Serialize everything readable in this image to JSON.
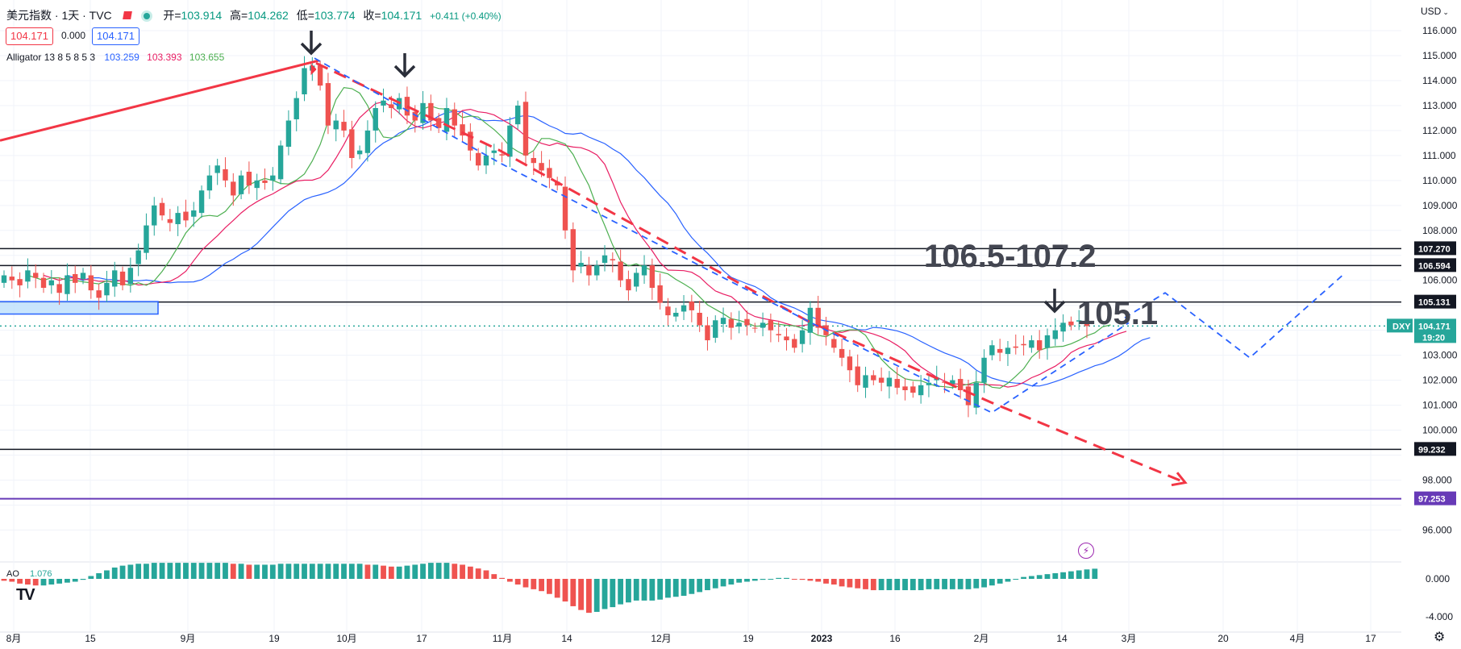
{
  "header": {
    "symbol": "美元指数 · 1天 · TVC",
    "open_label": "开=",
    "open": "103.914",
    "high_label": "高=",
    "high": "104.262",
    "low_label": "低=",
    "low": "103.774",
    "close_label": "收=",
    "close": "104.171",
    "change": "+0.411 (+0.40%)",
    "bid": "104.171",
    "spread": "0.000",
    "ask": "104.171",
    "indicator_name": "Alligator 13 8 5 8 5 3",
    "jaw": "103.259",
    "teeth": "103.393",
    "lips": "103.655",
    "currency": "USD"
  },
  "colors": {
    "up": "#26a69a",
    "down": "#ef5350",
    "jaw": "#2962ff",
    "teeth": "#e91e63",
    "lips": "#4caf50",
    "trend_red": "#f23645",
    "trend_blue": "#2962ff",
    "purple": "#673ab7",
    "annotation": "#434651"
  },
  "chart_data": {
    "type": "candlestick",
    "y_axis_ticks": [
      "116.000",
      "115.000",
      "114.000",
      "113.000",
      "112.000",
      "111.000",
      "110.000",
      "109.000",
      "108.000",
      "106.000",
      "103.000",
      "102.000",
      "101.000",
      "100.000",
      "98.000",
      "96.000"
    ],
    "ylim": [
      95.5,
      116.8
    ],
    "x_axis_labels": [
      "8月",
      "15",
      "9月",
      "19",
      "10月",
      "17",
      "11月",
      "14",
      "12月",
      "19",
      "2023",
      "16",
      "2月",
      "14",
      "3月",
      "20",
      "4月",
      "17"
    ],
    "horizontal_levels": [
      {
        "value": 107.27,
        "label": "107.270",
        "color": "#131722"
      },
      {
        "value": 106.594,
        "label": "106.594",
        "color": "#131722"
      },
      {
        "value": 105.131,
        "label": "105.131",
        "color": "#131722"
      },
      {
        "value": 99.232,
        "label": "99.232",
        "color": "#131722"
      },
      {
        "value": 97.253,
        "label": "97.253",
        "color": "#673ab7"
      }
    ],
    "current_price": {
      "symbol": "DXY",
      "value": 104.171,
      "label": "104.171",
      "countdown": "19:20"
    },
    "annotations": [
      "106.5-107.2",
      "105.1"
    ],
    "closes": [
      106.2,
      106.0,
      105.8,
      106.4,
      106.1,
      105.7,
      106.0,
      105.5,
      106.2,
      105.9,
      106.3,
      105.6,
      105.3,
      105.9,
      106.4,
      105.8,
      106.5,
      107.2,
      108.2,
      109.0,
      108.6,
      108.3,
      108.7,
      108.4,
      108.8,
      109.6,
      110.2,
      110.6,
      110.0,
      109.4,
      110.2,
      109.8,
      110.0,
      109.9,
      110.2,
      111.4,
      112.4,
      113.3,
      114.5,
      114.6,
      113.8,
      112.2,
      112.4,
      112.0,
      110.9,
      111.2,
      112.0,
      112.9,
      113.2,
      112.9,
      113.3,
      112.6,
      112.4,
      113.1,
      112.4,
      112.1,
      112.9,
      112.2,
      111.8,
      111.2,
      110.6,
      111.0,
      111.2,
      111.0,
      112.2,
      113.0,
      111.0,
      110.7,
      110.4,
      110.1,
      109.8,
      108.0,
      106.4,
      106.7,
      106.2,
      106.6,
      107.0,
      106.8,
      106.0,
      105.6,
      106.3,
      106.6,
      105.7,
      105.1,
      104.6,
      104.7,
      105.0,
      104.8,
      104.2,
      103.6,
      104.4,
      104.5,
      104.1,
      104.3,
      104.2,
      104.1,
      104.3,
      104.0,
      103.8,
      103.6,
      103.3,
      104.0,
      104.9,
      104.1,
      103.8,
      103.3,
      102.9,
      102.4,
      101.8,
      102.2,
      102.0,
      101.9,
      102.1,
      101.7,
      101.6,
      101.5,
      101.8,
      101.9,
      102.1,
      101.9,
      102.0,
      101.6,
      101.0,
      101.9,
      102.9,
      103.4,
      103.1,
      103.3,
      103.3,
      103.4,
      103.6,
      103.2,
      103.8,
      104.0,
      104.3,
      104.2,
      104.4,
      104.17
    ]
  },
  "ao": {
    "name": "AO",
    "value": "1.076",
    "ticks": [
      "0.000",
      "-4.000"
    ],
    "values": [
      -0.2,
      -0.3,
      -0.5,
      -0.6,
      -0.7,
      -0.7,
      -0.6,
      -0.5,
      -0.4,
      -0.3,
      -0.1,
      0.3,
      0.6,
      0.9,
      1.2,
      1.4,
      1.5,
      1.6,
      1.6,
      1.7,
      1.7,
      1.7,
      1.7,
      1.7,
      1.7,
      1.7,
      1.7,
      1.7,
      1.7,
      1.6,
      1.6,
      1.5,
      1.5,
      1.5,
      1.5,
      1.6,
      1.6,
      1.6,
      1.6,
      1.6,
      1.6,
      1.6,
      1.6,
      1.6,
      1.6,
      1.6,
      1.5,
      1.5,
      1.4,
      1.3,
      1.3,
      1.4,
      1.5,
      1.6,
      1.7,
      1.7,
      1.7,
      1.6,
      1.5,
      1.3,
      1.1,
      0.9,
      0.5,
      0.1,
      -0.3,
      -0.6,
      -0.9,
      -1.1,
      -1.3,
      -1.6,
      -2.0,
      -2.4,
      -2.9,
      -3.3,
      -3.6,
      -3.5,
      -3.2,
      -3.0,
      -2.7,
      -2.5,
      -2.3,
      -2.3,
      -2.3,
      -2.2,
      -2.0,
      -1.9,
      -1.8,
      -1.6,
      -1.4,
      -1.2,
      -1.0,
      -0.8,
      -0.6,
      -0.4,
      -0.3,
      -0.2,
      -0.1,
      0.0,
      0.1,
      0.1,
      0.0,
      -0.1,
      -0.2,
      -0.3,
      -0.5,
      -0.6,
      -0.8,
      -0.9,
      -1.0,
      -1.1,
      -1.2,
      -1.2,
      -1.2,
      -1.2,
      -1.2,
      -1.2,
      -1.2,
      -1.1,
      -1.1,
      -1.1,
      -1.1,
      -1.1,
      -1.1,
      -1.0,
      -0.9,
      -0.7,
      -0.5,
      -0.3,
      0.0,
      0.2,
      0.3,
      0.4,
      0.5,
      0.6,
      0.7,
      0.8,
      0.9,
      1.0,
      1.076
    ]
  }
}
